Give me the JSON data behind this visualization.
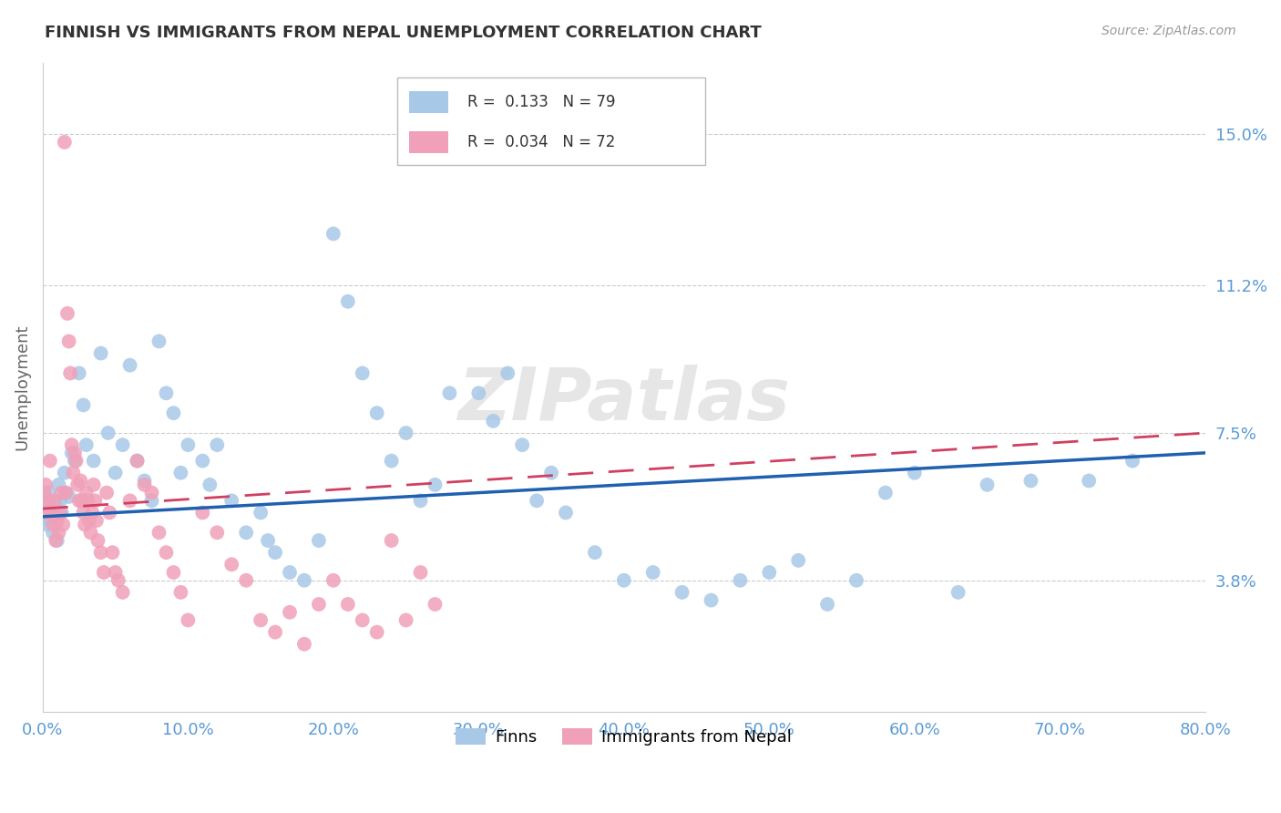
{
  "title": "FINNISH VS IMMIGRANTS FROM NEPAL UNEMPLOYMENT CORRELATION CHART",
  "source": "Source: ZipAtlas.com",
  "ylabel": "Unemployment",
  "ytick_labels": [
    "15.0%",
    "11.2%",
    "7.5%",
    "3.8%"
  ],
  "ytick_values": [
    0.15,
    0.112,
    0.075,
    0.038
  ],
  "xmin": 0.0,
  "xmax": 0.8,
  "ymin": 0.005,
  "ymax": 0.168,
  "finns_R": "0.133",
  "finns_N": "79",
  "nepal_R": "0.034",
  "nepal_N": "72",
  "legend_label_1": "Finns",
  "legend_label_2": "Immigrants from Nepal",
  "finn_color": "#a8c8e8",
  "nepal_color": "#f0a0b8",
  "finn_line_color": "#2060b0",
  "nepal_line_color": "#d04060",
  "watermark": "ZIPatlas",
  "finns_x": [
    0.001,
    0.002,
    0.003,
    0.004,
    0.005,
    0.006,
    0.007,
    0.008,
    0.009,
    0.01,
    0.011,
    0.012,
    0.013,
    0.015,
    0.016,
    0.018,
    0.02,
    0.022,
    0.025,
    0.028,
    0.03,
    0.035,
    0.04,
    0.045,
    0.05,
    0.055,
    0.06,
    0.065,
    0.07,
    0.075,
    0.08,
    0.085,
    0.09,
    0.095,
    0.1,
    0.11,
    0.115,
    0.12,
    0.13,
    0.14,
    0.15,
    0.155,
    0.16,
    0.17,
    0.18,
    0.19,
    0.2,
    0.21,
    0.22,
    0.23,
    0.24,
    0.25,
    0.26,
    0.27,
    0.28,
    0.3,
    0.31,
    0.32,
    0.33,
    0.34,
    0.35,
    0.36,
    0.38,
    0.4,
    0.42,
    0.44,
    0.46,
    0.48,
    0.5,
    0.52,
    0.54,
    0.56,
    0.58,
    0.6,
    0.63,
    0.65,
    0.68,
    0.72,
    0.75
  ],
  "finns_y": [
    0.055,
    0.058,
    0.052,
    0.06,
    0.053,
    0.056,
    0.05,
    0.054,
    0.057,
    0.048,
    0.062,
    0.058,
    0.055,
    0.065,
    0.06,
    0.059,
    0.07,
    0.068,
    0.09,
    0.082,
    0.072,
    0.068,
    0.095,
    0.075,
    0.065,
    0.072,
    0.092,
    0.068,
    0.063,
    0.058,
    0.098,
    0.085,
    0.08,
    0.065,
    0.072,
    0.068,
    0.062,
    0.072,
    0.058,
    0.05,
    0.055,
    0.048,
    0.045,
    0.04,
    0.038,
    0.048,
    0.125,
    0.108,
    0.09,
    0.08,
    0.068,
    0.075,
    0.058,
    0.062,
    0.085,
    0.085,
    0.078,
    0.09,
    0.072,
    0.058,
    0.065,
    0.055,
    0.045,
    0.038,
    0.04,
    0.035,
    0.033,
    0.038,
    0.04,
    0.043,
    0.032,
    0.038,
    0.06,
    0.065,
    0.035,
    0.062,
    0.063,
    0.063,
    0.068
  ],
  "nepal_x": [
    0.001,
    0.002,
    0.003,
    0.004,
    0.005,
    0.006,
    0.007,
    0.008,
    0.009,
    0.01,
    0.011,
    0.012,
    0.013,
    0.014,
    0.015,
    0.016,
    0.017,
    0.018,
    0.019,
    0.02,
    0.021,
    0.022,
    0.023,
    0.024,
    0.025,
    0.026,
    0.027,
    0.028,
    0.029,
    0.03,
    0.031,
    0.032,
    0.033,
    0.034,
    0.035,
    0.036,
    0.037,
    0.038,
    0.04,
    0.042,
    0.044,
    0.046,
    0.048,
    0.05,
    0.052,
    0.055,
    0.06,
    0.065,
    0.07,
    0.075,
    0.08,
    0.085,
    0.09,
    0.095,
    0.1,
    0.11,
    0.12,
    0.13,
    0.14,
    0.15,
    0.16,
    0.17,
    0.18,
    0.19,
    0.2,
    0.21,
    0.22,
    0.23,
    0.24,
    0.25,
    0.26,
    0.27
  ],
  "nepal_y": [
    0.06,
    0.062,
    0.055,
    0.058,
    0.068,
    0.055,
    0.052,
    0.058,
    0.048,
    0.053,
    0.05,
    0.055,
    0.06,
    0.052,
    0.148,
    0.06,
    0.105,
    0.098,
    0.09,
    0.072,
    0.065,
    0.07,
    0.068,
    0.062,
    0.058,
    0.063,
    0.058,
    0.055,
    0.052,
    0.06,
    0.058,
    0.053,
    0.05,
    0.055,
    0.062,
    0.058,
    0.053,
    0.048,
    0.045,
    0.04,
    0.06,
    0.055,
    0.045,
    0.04,
    0.038,
    0.035,
    0.058,
    0.068,
    0.062,
    0.06,
    0.05,
    0.045,
    0.04,
    0.035,
    0.028,
    0.055,
    0.05,
    0.042,
    0.038,
    0.028,
    0.025,
    0.03,
    0.022,
    0.032,
    0.038,
    0.032,
    0.028,
    0.025,
    0.048,
    0.028,
    0.04,
    0.032
  ],
  "finn_trend_x": [
    0.0,
    0.8
  ],
  "finn_trend_y": [
    0.054,
    0.07
  ],
  "nepal_trend_x": [
    0.0,
    0.8
  ],
  "nepal_trend_y": [
    0.056,
    0.075
  ],
  "xtick_vals": [
    0.0,
    0.1,
    0.2,
    0.3,
    0.4,
    0.5,
    0.6,
    0.7,
    0.8
  ],
  "xtick_labels": [
    "0.0%",
    "10.0%",
    "20.0%",
    "30.0%",
    "40.0%",
    "50.0%",
    "60.0%",
    "70.0%",
    "80.0%"
  ]
}
